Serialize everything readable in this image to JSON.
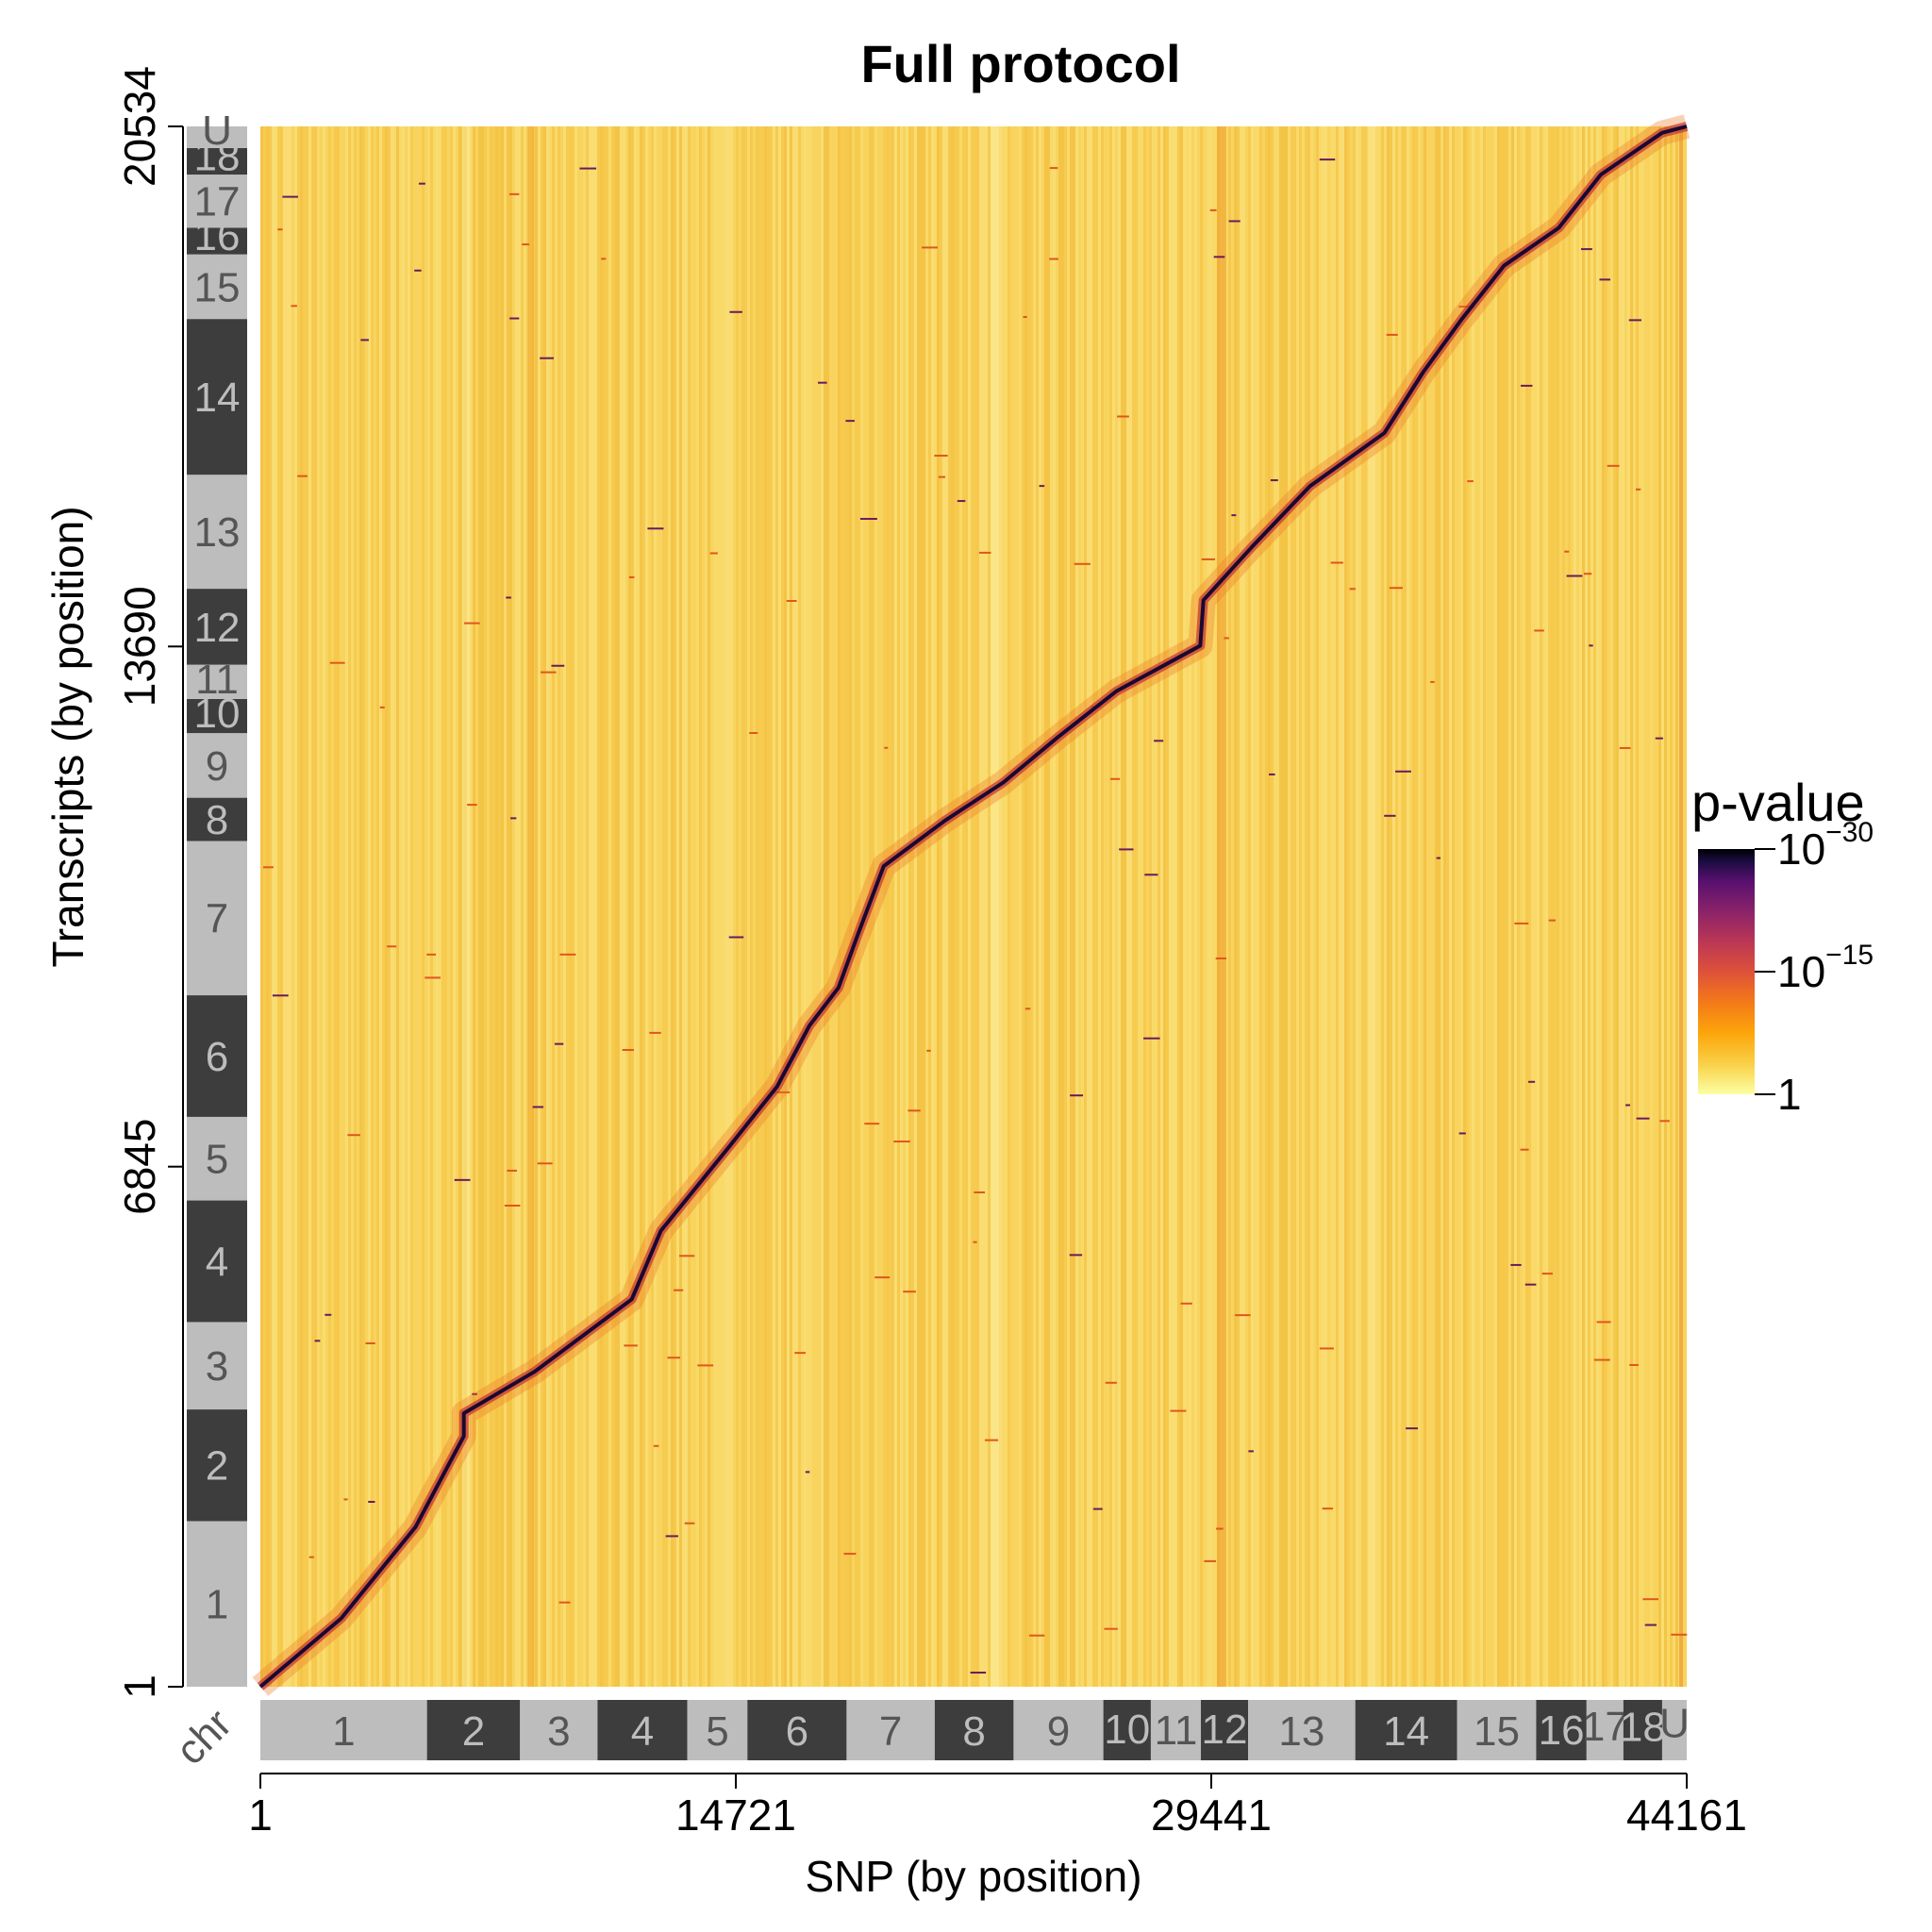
{
  "chart_data": {
    "type": "heatmap",
    "title": "Full protocol",
    "xlabel": "SNP (by position)",
    "ylabel": "Transcripts (by position)",
    "x_range": [
      1,
      44161
    ],
    "y_range": [
      1,
      20534
    ],
    "x_ticks": [
      "1",
      "14721",
      "29441",
      "44161"
    ],
    "x_tick_values": [
      1,
      14721,
      29441,
      44161
    ],
    "y_ticks": [
      "1",
      "6845",
      "13690",
      "20534"
    ],
    "y_tick_values": [
      1,
      6845,
      13690,
      20534
    ],
    "chr_track_label": "chr",
    "x_chromosomes": [
      {
        "label": "1",
        "start": 1,
        "end": 5160
      },
      {
        "label": "2",
        "start": 5160,
        "end": 8040
      },
      {
        "label": "3",
        "start": 8040,
        "end": 10440
      },
      {
        "label": "4",
        "start": 10440,
        "end": 13220
      },
      {
        "label": "5",
        "start": 13220,
        "end": 15080
      },
      {
        "label": "6",
        "start": 15080,
        "end": 18150
      },
      {
        "label": "7",
        "start": 18150,
        "end": 20880
      },
      {
        "label": "8",
        "start": 20880,
        "end": 23320
      },
      {
        "label": "9",
        "start": 23320,
        "end": 26100
      },
      {
        "label": "10",
        "start": 26100,
        "end": 27570
      },
      {
        "label": "11",
        "start": 27570,
        "end": 29120
      },
      {
        "label": "12",
        "start": 29120,
        "end": 30580
      },
      {
        "label": "13",
        "start": 30580,
        "end": 33900
      },
      {
        "label": "14",
        "start": 33900,
        "end": 37050
      },
      {
        "label": "15",
        "start": 37050,
        "end": 39500
      },
      {
        "label": "16",
        "start": 39500,
        "end": 41060
      },
      {
        "label": "17",
        "start": 41060,
        "end": 42200
      },
      {
        "label": "18",
        "start": 42200,
        "end": 43400
      },
      {
        "label": "U",
        "start": 43400,
        "end": 44161
      }
    ],
    "y_chromosomes": [
      {
        "label": "1",
        "start": 1,
        "end": 2180
      },
      {
        "label": "2",
        "start": 2180,
        "end": 3650
      },
      {
        "label": "3",
        "start": 3650,
        "end": 4800
      },
      {
        "label": "4",
        "start": 4800,
        "end": 6400
      },
      {
        "label": "5",
        "start": 6400,
        "end": 7500
      },
      {
        "label": "6",
        "start": 7500,
        "end": 9100
      },
      {
        "label": "7",
        "start": 9100,
        "end": 11130
      },
      {
        "label": "8",
        "start": 11130,
        "end": 11700
      },
      {
        "label": "9",
        "start": 11700,
        "end": 12550
      },
      {
        "label": "10",
        "start": 12550,
        "end": 13000
      },
      {
        "label": "11",
        "start": 13000,
        "end": 13450
      },
      {
        "label": "12",
        "start": 13450,
        "end": 14450
      },
      {
        "label": "13",
        "start": 14450,
        "end": 15950
      },
      {
        "label": "14",
        "start": 15950,
        "end": 18000
      },
      {
        "label": "15",
        "start": 18000,
        "end": 18850
      },
      {
        "label": "16",
        "start": 18850,
        "end": 19200
      },
      {
        "label": "17",
        "start": 19200,
        "end": 19900
      },
      {
        "label": "18",
        "start": 19900,
        "end": 20250
      },
      {
        "label": "U",
        "start": 20250,
        "end": 20534
      }
    ],
    "diagonal": {
      "description_points_xy": [
        [
          1,
          1
        ],
        [
          2500,
          900
        ],
        [
          4800,
          2100
        ],
        [
          6300,
          3300
        ],
        [
          6300,
          3600
        ],
        [
          8500,
          4150
        ],
        [
          11500,
          5100
        ],
        [
          12400,
          6000
        ],
        [
          14500,
          7100
        ],
        [
          16000,
          7900
        ],
        [
          17000,
          8700
        ],
        [
          17900,
          9200
        ],
        [
          18500,
          9900
        ],
        [
          19300,
          10800
        ],
        [
          21200,
          11400
        ],
        [
          23000,
          11900
        ],
        [
          24700,
          12500
        ],
        [
          26500,
          13100
        ],
        [
          29100,
          13700
        ],
        [
          29200,
          14300
        ],
        [
          30700,
          15000
        ],
        [
          32500,
          15800
        ],
        [
          34800,
          16500
        ],
        [
          36000,
          17300
        ],
        [
          37200,
          18000
        ],
        [
          38500,
          18700
        ],
        [
          40200,
          19200
        ],
        [
          41500,
          19900
        ],
        [
          43400,
          20450
        ],
        [
          44161,
          20534
        ]
      ]
    },
    "legend": {
      "title": "p-value",
      "ticks": [
        {
          "base": "10",
          "exp": "−30",
          "log10p": -30
        },
        {
          "base": "10",
          "exp": "−15",
          "log10p": -15
        },
        {
          "base": "1",
          "exp": "",
          "log10p": 0
        }
      ],
      "placement": "right",
      "colormap": "inferno"
    },
    "colors": {
      "low": "#fcf49c",
      "background": "#f7cf52",
      "mid": "#f3841f",
      "high": "#4a0c6b",
      "max": "#000004",
      "chr_light": "#bdbdbd",
      "chr_dark": "#3d3d3d"
    }
  }
}
